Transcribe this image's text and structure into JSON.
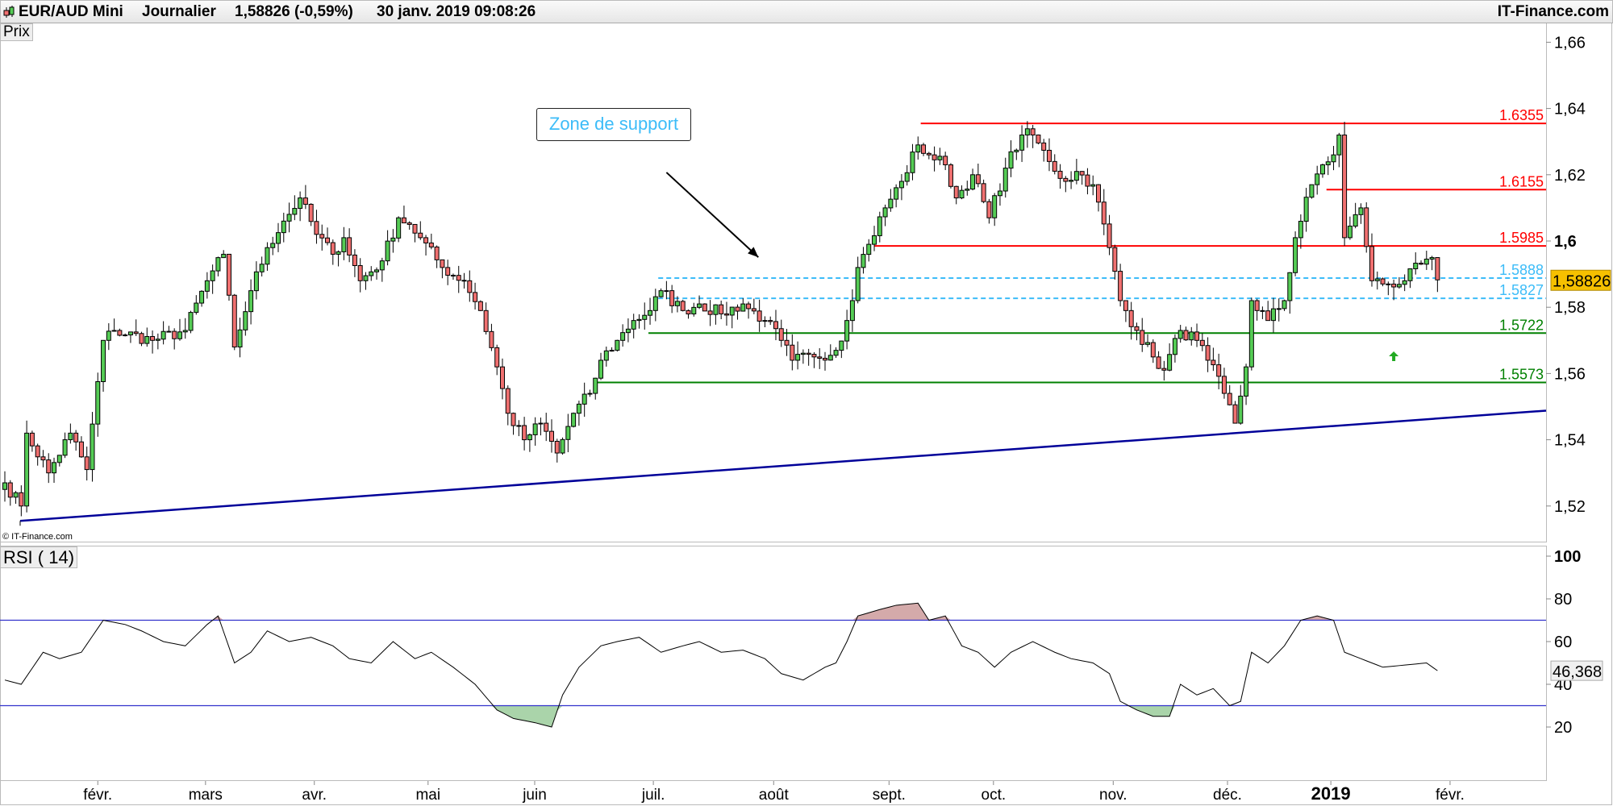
{
  "header": {
    "instrument": "EUR/AUD Mini",
    "period": "Journalier",
    "last": "1,58826 (-0,59%)",
    "datetime": "30 janv. 2019 09:08:26",
    "brand": "IT-Finance.com"
  },
  "price_panel_label": "Prix",
  "rsi_panel_label": "RSI ( 14)",
  "copyright": "© IT-Finance.com",
  "annotation_text": "Zone de support",
  "colors": {
    "up": "#55cc55",
    "down": "#f07070",
    "resistance": "#ff0000",
    "support": "#008000",
    "zone": "#3cbcf8",
    "trend": "#000099",
    "rsi_band": "#3333cc"
  },
  "chart_data": [
    {
      "type": "candlestick",
      "title": "EUR/AUD Mini Journalier",
      "ylim": [
        1.505,
        1.665
      ],
      "y_ticks": [
        {
          "v": 1.66,
          "label": "1,66"
        },
        {
          "v": 1.64,
          "label": "1,64"
        },
        {
          "v": 1.62,
          "label": "1,62"
        },
        {
          "v": 1.6,
          "label": "1,6"
        },
        {
          "v": 1.58,
          "label": "1,58"
        },
        {
          "v": 1.56,
          "label": "1,56"
        },
        {
          "v": 1.54,
          "label": "1,54"
        },
        {
          "v": 1.52,
          "label": "1,52"
        }
      ],
      "last_price": {
        "v": 1.58826,
        "label": "1,58826"
      },
      "close_anchors": [
        [
          0,
          1.527
        ],
        [
          3,
          1.52
        ],
        [
          4,
          1.542
        ],
        [
          8,
          1.53
        ],
        [
          12,
          1.542
        ],
        [
          15,
          1.531
        ],
        [
          18,
          1.57
        ],
        [
          20,
          1.573
        ],
        [
          27,
          1.57
        ],
        [
          33,
          1.573
        ],
        [
          37,
          1.588
        ],
        [
          40,
          1.596
        ],
        [
          42,
          1.568
        ],
        [
          45,
          1.585
        ],
        [
          48,
          1.598
        ],
        [
          51,
          1.606
        ],
        [
          54,
          1.613
        ],
        [
          57,
          1.602
        ],
        [
          60,
          1.596
        ],
        [
          62,
          1.601
        ],
        [
          65,
          1.588
        ],
        [
          69,
          1.594
        ],
        [
          72,
          1.607
        ],
        [
          74,
          1.605
        ],
        [
          76,
          1.601
        ],
        [
          80,
          1.592
        ],
        [
          84,
          1.588
        ],
        [
          87,
          1.579
        ],
        [
          90,
          1.562
        ],
        [
          92,
          1.548
        ],
        [
          95,
          1.54
        ],
        [
          98,
          1.545
        ],
        [
          101,
          1.536
        ],
        [
          104,
          1.548
        ],
        [
          107,
          1.554
        ],
        [
          109,
          1.564
        ],
        [
          112,
          1.57
        ],
        [
          115,
          1.576
        ],
        [
          118,
          1.579
        ],
        [
          120,
          1.585
        ],
        [
          124,
          1.579
        ],
        [
          127,
          1.581
        ],
        [
          131,
          1.578
        ],
        [
          135,
          1.581
        ],
        [
          139,
          1.576
        ],
        [
          142,
          1.57
        ],
        [
          144,
          1.564
        ],
        [
          148,
          1.565
        ],
        [
          152,
          1.567
        ],
        [
          154,
          1.576
        ],
        [
          156,
          1.592
        ],
        [
          158,
          1.599
        ],
        [
          161,
          1.61
        ],
        [
          164,
          1.618
        ],
        [
          167,
          1.629
        ],
        [
          169,
          1.626
        ],
        [
          172,
          1.623
        ],
        [
          174,
          1.613
        ],
        [
          177,
          1.62
        ],
        [
          180,
          1.607
        ],
        [
          183,
          1.622
        ],
        [
          186,
          1.632
        ],
        [
          188,
          1.632
        ],
        [
          191,
          1.624
        ],
        [
          194,
          1.618
        ],
        [
          196,
          1.621
        ],
        [
          199,
          1.617
        ],
        [
          202,
          1.598
        ],
        [
          204,
          1.582
        ],
        [
          207,
          1.573
        ],
        [
          210,
          1.565
        ],
        [
          212,
          1.561
        ],
        [
          215,
          1.573
        ],
        [
          218,
          1.57
        ],
        [
          220,
          1.564
        ],
        [
          223,
          1.554
        ],
        [
          225,
          1.545
        ],
        [
          227,
          1.562
        ],
        [
          228,
          1.582
        ],
        [
          231,
          1.576
        ],
        [
          234,
          1.582
        ],
        [
          236,
          1.601
        ],
        [
          239,
          1.617
        ],
        [
          241,
          1.623
        ],
        [
          243,
          1.626
        ],
        [
          244,
          1.632
        ],
        [
          245,
          1.601
        ],
        [
          248,
          1.61
        ],
        [
          250,
          1.588
        ],
        [
          253,
          1.587
        ],
        [
          256,
          1.588
        ],
        [
          259,
          1.593
        ],
        [
          261,
          1.595
        ],
        [
          262,
          1.58826
        ]
      ],
      "levels": [
        {
          "v": 1.6355,
          "label": "1.6355",
          "kind": "resistance",
          "from_index": 167.5,
          "dashed": false
        },
        {
          "v": 1.6155,
          "label": "1.6155",
          "kind": "resistance",
          "from_index": 241.7,
          "dashed": false
        },
        {
          "v": 1.5985,
          "label": "1.5985",
          "kind": "resistance",
          "from_index": 159,
          "dashed": false
        },
        {
          "v": 1.5888,
          "label": "1.5888",
          "kind": "zone",
          "from_index": 119.5,
          "dashed": true
        },
        {
          "v": 1.5827,
          "label": "1.5827",
          "kind": "zone",
          "from_index": 119.5,
          "dashed": true
        },
        {
          "v": 1.5722,
          "label": "1.5722",
          "kind": "support",
          "from_index": 117.7,
          "dashed": false
        },
        {
          "v": 1.5573,
          "label": "1.5573",
          "kind": "support",
          "from_index": 108.3,
          "dashed": false
        }
      ],
      "trendline": [
        [
          2.8,
          1.5155
        ],
        [
          282,
          1.5488
        ]
      ],
      "arrow": [
        [
          121,
          1.6207
        ],
        [
          137.8,
          1.5951
        ]
      ],
      "up_marker": [
        254,
        1.5652
      ]
    },
    {
      "type": "line",
      "title": "RSI ( 14)",
      "ylim": [
        0,
        100
      ],
      "y_ticks": [
        {
          "v": 100,
          "label": "100"
        },
        {
          "v": 80,
          "label": "80"
        },
        {
          "v": 60,
          "label": "60"
        },
        {
          "v": 40,
          "label": "40"
        },
        {
          "v": 20,
          "label": "20"
        }
      ],
      "bands": [
        70,
        30
      ],
      "last_value": {
        "v": 46.368,
        "label": "46,368"
      },
      "anchors": [
        [
          0,
          42
        ],
        [
          3,
          40
        ],
        [
          7,
          55
        ],
        [
          10,
          52
        ],
        [
          14,
          55
        ],
        [
          18,
          70
        ],
        [
          22,
          68
        ],
        [
          25,
          65
        ],
        [
          29,
          60
        ],
        [
          33,
          58
        ],
        [
          37,
          68
        ],
        [
          39,
          72
        ],
        [
          42,
          50
        ],
        [
          45,
          55
        ],
        [
          48,
          65
        ],
        [
          52,
          60
        ],
        [
          56,
          62
        ],
        [
          60,
          58
        ],
        [
          63,
          52
        ],
        [
          67,
          50
        ],
        [
          71,
          60
        ],
        [
          75,
          52
        ],
        [
          78,
          55
        ],
        [
          82,
          48
        ],
        [
          86,
          40
        ],
        [
          90,
          28
        ],
        [
          93,
          24
        ],
        [
          97,
          22
        ],
        [
          100,
          20
        ],
        [
          102,
          35
        ],
        [
          105,
          48
        ],
        [
          109,
          58
        ],
        [
          112,
          60
        ],
        [
          116,
          62
        ],
        [
          120,
          55
        ],
        [
          124,
          58
        ],
        [
          127,
          60
        ],
        [
          131,
          55
        ],
        [
          135,
          56
        ],
        [
          139,
          52
        ],
        [
          142,
          45
        ],
        [
          146,
          42
        ],
        [
          150,
          48
        ],
        [
          152,
          50
        ],
        [
          154,
          60
        ],
        [
          156,
          72
        ],
        [
          160,
          75
        ],
        [
          163,
          77
        ],
        [
          167,
          78
        ],
        [
          169,
          70
        ],
        [
          172,
          72
        ],
        [
          175,
          58
        ],
        [
          178,
          55
        ],
        [
          181,
          48
        ],
        [
          184,
          55
        ],
        [
          188,
          60
        ],
        [
          192,
          55
        ],
        [
          195,
          52
        ],
        [
          199,
          50
        ],
        [
          202,
          45
        ],
        [
          204,
          32
        ],
        [
          207,
          28
        ],
        [
          210,
          25
        ],
        [
          213,
          25
        ],
        [
          215,
          40
        ],
        [
          218,
          35
        ],
        [
          221,
          38
        ],
        [
          224,
          30
        ],
        [
          226,
          32
        ],
        [
          228,
          55
        ],
        [
          231,
          50
        ],
        [
          234,
          58
        ],
        [
          237,
          70
        ],
        [
          240,
          72
        ],
        [
          243,
          70
        ],
        [
          245,
          55
        ],
        [
          248,
          52
        ],
        [
          252,
          48
        ],
        [
          256,
          49
        ],
        [
          260,
          50
        ],
        [
          262,
          46.368
        ]
      ]
    }
  ],
  "x_ticks": [
    {
      "i": 17,
      "label": "févr."
    },
    {
      "i": 36.7,
      "label": "mars"
    },
    {
      "i": 56.6,
      "label": "avr."
    },
    {
      "i": 77.4,
      "label": "mai"
    },
    {
      "i": 96.9,
      "label": "juin"
    },
    {
      "i": 118.6,
      "label": "juil."
    },
    {
      "i": 140.6,
      "label": "août"
    },
    {
      "i": 161.7,
      "label": "sept."
    },
    {
      "i": 180.8,
      "label": "oct."
    },
    {
      "i": 202.7,
      "label": "nov."
    },
    {
      "i": 223.6,
      "label": "déc."
    },
    {
      "i": 242.5,
      "label": "2019",
      "bold": true
    },
    {
      "i": 264.3,
      "label": "févr."
    }
  ]
}
